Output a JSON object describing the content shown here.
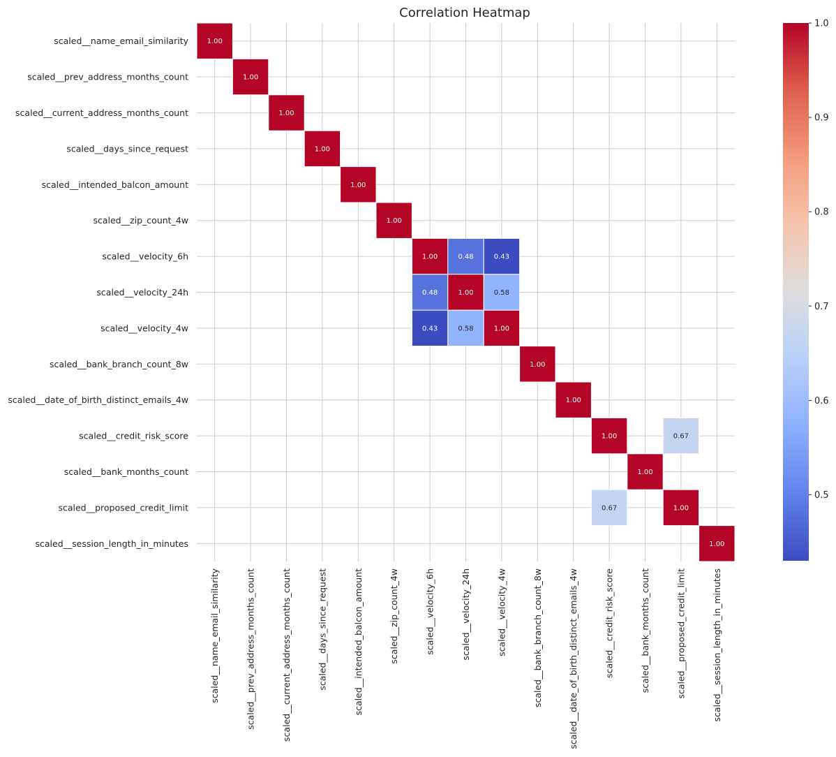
{
  "chart_data": {
    "type": "heatmap",
    "title": "Correlation Heatmap",
    "xlabel": "",
    "ylabel": "",
    "colormap": "coolwarm",
    "vmin": 0.43,
    "vmax": 1.0,
    "grid": true,
    "mask_shown": "cells with |correlation| below threshold are blank",
    "labels": [
      "scaled__name_email_similarity",
      "scaled__prev_address_months_count",
      "scaled__current_address_months_count",
      "scaled__days_since_request",
      "scaled__intended_balcon_amount",
      "scaled__zip_count_4w",
      "scaled__velocity_6h",
      "scaled__velocity_24h",
      "scaled__velocity_4w",
      "scaled__bank_branch_count_8w",
      "scaled__date_of_birth_distinct_emails_4w",
      "scaled__credit_risk_score",
      "scaled__bank_months_count",
      "scaled__proposed_credit_limit",
      "scaled__session_length_in_minutes"
    ],
    "cells": [
      {
        "row": 0,
        "col": 0,
        "value": 1.0
      },
      {
        "row": 1,
        "col": 1,
        "value": 1.0
      },
      {
        "row": 2,
        "col": 2,
        "value": 1.0
      },
      {
        "row": 3,
        "col": 3,
        "value": 1.0
      },
      {
        "row": 4,
        "col": 4,
        "value": 1.0
      },
      {
        "row": 5,
        "col": 5,
        "value": 1.0
      },
      {
        "row": 6,
        "col": 6,
        "value": 1.0
      },
      {
        "row": 6,
        "col": 7,
        "value": 0.48
      },
      {
        "row": 6,
        "col": 8,
        "value": 0.43
      },
      {
        "row": 7,
        "col": 6,
        "value": 0.48
      },
      {
        "row": 7,
        "col": 7,
        "value": 1.0
      },
      {
        "row": 7,
        "col": 8,
        "value": 0.58
      },
      {
        "row": 8,
        "col": 6,
        "value": 0.43
      },
      {
        "row": 8,
        "col": 7,
        "value": 0.58
      },
      {
        "row": 8,
        "col": 8,
        "value": 1.0
      },
      {
        "row": 9,
        "col": 9,
        "value": 1.0
      },
      {
        "row": 10,
        "col": 10,
        "value": 1.0
      },
      {
        "row": 11,
        "col": 11,
        "value": 1.0
      },
      {
        "row": 11,
        "col": 13,
        "value": 0.67
      },
      {
        "row": 12,
        "col": 12,
        "value": 1.0
      },
      {
        "row": 13,
        "col": 11,
        "value": 0.67
      },
      {
        "row": 13,
        "col": 13,
        "value": 1.0
      },
      {
        "row": 14,
        "col": 14,
        "value": 1.0
      }
    ],
    "colorbar": {
      "ticks": [
        0.5,
        0.6,
        0.7,
        0.8,
        0.9,
        1.0
      ],
      "tick_labels": [
        "0.5",
        "0.6",
        "0.7",
        "0.8",
        "0.9",
        "1.0"
      ]
    }
  }
}
